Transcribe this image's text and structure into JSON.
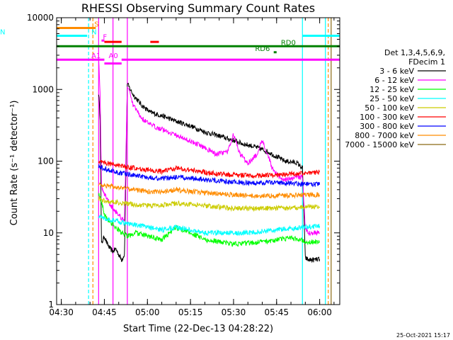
{
  "chart_data": {
    "type": "line",
    "title": "RHESSI Observing Summary Count Rates",
    "xlabel": "Start Time (22-Dec-13 04:28:22)",
    "ylabel": "Count Rate (s⁻¹ detector⁻¹)",
    "x_scale": "time",
    "y_scale": "log",
    "xlim": [
      "04:28:22",
      "06:07:00"
    ],
    "ylim": [
      1,
      10000
    ],
    "x_ticks": [
      "04:30",
      "04:45",
      "05:00",
      "05:15",
      "05:30",
      "05:45",
      "06:00"
    ],
    "y_ticks": [
      "1",
      "10",
      "100",
      "1000",
      "10000"
    ],
    "legend_header": [
      "Det 1,3,4,5,6,9,",
      "FDecim 1"
    ],
    "series": [
      {
        "name": "3 - 6 keV",
        "color": "#000000",
        "x": [
          "04:43",
          "04:43:30",
          "04:44",
          "04:45",
          "04:46",
          "04:47",
          "04:48",
          "04:49",
          "04:50",
          "04:51",
          "04:52",
          "04:53",
          "04:55",
          "04:58",
          "05:01",
          "05:05",
          "05:10",
          "05:15",
          "05:20",
          "05:25",
          "05:28",
          "05:31",
          "05:33",
          "05:36",
          "05:39",
          "05:42",
          "05:45",
          "05:48",
          "05:52",
          "05:54",
          "05:55",
          "05:56",
          "05:58",
          "06:00"
        ],
        "values": [
          900,
          400,
          7,
          9,
          7,
          6,
          5.5,
          6,
          5,
          4.2,
          5,
          1200,
          850,
          600,
          480,
          430,
          360,
          310,
          255,
          225,
          205,
          190,
          175,
          165,
          150,
          135,
          115,
          100,
          95,
          80,
          4.5,
          4.2,
          4.2,
          4.3
        ]
      },
      {
        "name": "6 - 12 keV",
        "color": "#ff00ff",
        "x": [
          "04:43",
          "04:43:30",
          "04:44",
          "04:45",
          "04:46",
          "04:47",
          "04:48",
          "04:49",
          "04:50",
          "04:51",
          "04:52",
          "04:53",
          "04:55",
          "04:58",
          "05:01",
          "05:05",
          "05:10",
          "05:15",
          "05:20",
          "05:24",
          "05:28",
          "05:30",
          "05:32",
          "05:35",
          "05:38",
          "05:40",
          "05:42",
          "05:44",
          "05:46",
          "05:48",
          "05:52",
          "05:54",
          "05:55",
          "05:56",
          "05:58",
          "06:00"
        ],
        "values": [
          3000,
          900,
          45,
          35,
          30,
          25,
          22,
          20,
          18,
          16,
          15,
          1150,
          600,
          400,
          320,
          280,
          230,
          190,
          155,
          125,
          135,
          240,
          130,
          95,
          120,
          200,
          120,
          70,
          60,
          55,
          60,
          60,
          12,
          10,
          10,
          10
        ]
      },
      {
        "name": "12 - 25 keV",
        "color": "#00ff00",
        "x": [
          "04:43",
          "04:44",
          "04:45",
          "04:47",
          "04:49",
          "04:51",
          "04:53",
          "04:56",
          "05:00",
          "05:05",
          "05:10",
          "05:15",
          "05:20",
          "05:25",
          "05:30",
          "05:35",
          "05:40",
          "05:45",
          "05:50",
          "05:54",
          "05:56",
          "06:00"
        ],
        "values": [
          35,
          28,
          18,
          14,
          12,
          10,
          9,
          10,
          9,
          8,
          12,
          10,
          8,
          7.5,
          7,
          7.2,
          7.5,
          8,
          8.5,
          8,
          7.5,
          7.5
        ]
      },
      {
        "name": "25 - 50 keV",
        "color": "#00ffff",
        "x": [
          "04:43",
          "04:45",
          "04:48",
          "04:51",
          "04:55",
          "05:00",
          "05:05",
          "05:10",
          "05:15",
          "05:20",
          "05:25",
          "05:30",
          "05:35",
          "05:40",
          "05:45",
          "05:50",
          "05:55",
          "06:00"
        ],
        "values": [
          17,
          16,
          15,
          14,
          13,
          12,
          11,
          12,
          11,
          10,
          10,
          10,
          10,
          10.5,
          11,
          11.5,
          12,
          12.5
        ]
      },
      {
        "name": "50 - 100 keV",
        "color": "#cccc00",
        "x": [
          "04:43",
          "04:45",
          "04:48",
          "04:51",
          "04:55",
          "05:00",
          "05:05",
          "05:10",
          "05:15",
          "05:20",
          "05:25",
          "05:30",
          "05:35",
          "05:40",
          "05:45",
          "05:50",
          "05:55",
          "06:00"
        ],
        "values": [
          30,
          28,
          27,
          26,
          25,
          24,
          24,
          26,
          25,
          24,
          23,
          22,
          22,
          22,
          22,
          22,
          23,
          23
        ]
      },
      {
        "name": "100 - 300 keV",
        "color": "#ff0000",
        "x": [
          "04:43",
          "04:45",
          "04:48",
          "04:51",
          "04:55",
          "05:00",
          "05:05",
          "05:10",
          "05:15",
          "05:20",
          "05:25",
          "05:30",
          "05:35",
          "05:40",
          "05:45",
          "05:50",
          "05:55",
          "06:00"
        ],
        "values": [
          100,
          95,
          90,
          85,
          80,
          75,
          72,
          80,
          75,
          70,
          66,
          64,
          63,
          63,
          64,
          66,
          68,
          70
        ]
      },
      {
        "name": "300 - 800 keV",
        "color": "#0000ff",
        "x": [
          "04:43",
          "04:45",
          "04:48",
          "04:51",
          "04:55",
          "05:00",
          "05:05",
          "05:10",
          "05:15",
          "05:20",
          "05:25",
          "05:30",
          "05:35",
          "05:40",
          "05:45",
          "05:50",
          "05:55",
          "06:00"
        ],
        "values": [
          85,
          78,
          72,
          68,
          64,
          60,
          57,
          60,
          58,
          55,
          53,
          51,
          50,
          50,
          50,
          49,
          48,
          47
        ]
      },
      {
        "name": "800 - 7000 keV",
        "color": "#ff8c00",
        "x": [
          "04:43",
          "04:45",
          "04:48",
          "04:51",
          "04:55",
          "05:00",
          "05:05",
          "05:10",
          "05:15",
          "05:20",
          "05:25",
          "05:30",
          "05:35",
          "05:40",
          "05:45",
          "05:50",
          "05:55",
          "06:00"
        ],
        "values": [
          48,
          46,
          44,
          42,
          40,
          38,
          37,
          40,
          38,
          36,
          35,
          34,
          33,
          33,
          33,
          33,
          34,
          34
        ]
      },
      {
        "name": "7000 - 15000 keV",
        "color": "#8b6914",
        "x": [],
        "values": []
      }
    ],
    "flag_bars": [
      {
        "label": "S",
        "color": "#ff8c00",
        "y": 7200,
        "x0": "04:28:22",
        "x1": "04:42",
        "label_x": "04:41"
      },
      {
        "label": "N",
        "color": "#00ffff",
        "y": 5600,
        "x0": "04:28:22",
        "x1": "04:39",
        "label_x": "04:40"
      },
      {
        "label": "N",
        "color": "#00ffff",
        "y": 5600,
        "x0": "05:54",
        "x1": "06:07",
        "label_x": ""
      },
      {
        "label": "F",
        "color": "#ff00ff",
        "y": 4800,
        "x0": "04:44",
        "x1": "04:45",
        "label_x": "04:44"
      },
      {
        "label": "",
        "color": "#ff0000",
        "y": 4600,
        "x0": "04:45",
        "x1": "04:51",
        "label_x": ""
      },
      {
        "label": "",
        "color": "#ff0000",
        "y": 4600,
        "x0": "05:01",
        "x1": "05:04",
        "label_x": ""
      },
      {
        "label": "RD0",
        "color": "#008000",
        "y": 4000,
        "x0": "04:28:22",
        "x1": "06:07",
        "label_x": "05:46"
      },
      {
        "label": "RD6",
        "color": "#008000",
        "y": 3300,
        "x0": "05:44",
        "x1": "05:45",
        "label_x": "05:37"
      },
      {
        "label": "A0",
        "color": "#ff00ff",
        "y": 2600,
        "x0": "04:51",
        "x1": "06:07",
        "label_x": "04:46"
      },
      {
        "label": "A1",
        "color": "#ff00ff",
        "y": 2600,
        "x0": "04:28:22",
        "x1": "04:45",
        "label_x": "04:40"
      },
      {
        "label": "",
        "color": "#ff00ff",
        "y": 2300,
        "x0": "04:45",
        "x1": "04:51",
        "label_x": ""
      }
    ],
    "vertical_lines": [
      {
        "x": "04:39:30",
        "color": "#00ffff",
        "style": "dashed"
      },
      {
        "x": "04:41",
        "color": "#ff8c00",
        "style": "dashed"
      },
      {
        "x": "04:43",
        "color": "#ff00ff",
        "style": "solid"
      },
      {
        "x": "04:48",
        "color": "#ff00ff",
        "style": "solid"
      },
      {
        "x": "04:53",
        "color": "#ff00ff",
        "style": "solid"
      },
      {
        "x": "05:54",
        "color": "#00ffff",
        "style": "solid"
      },
      {
        "x": "06:02",
        "color": "#00ffff",
        "style": "solid"
      },
      {
        "x": "06:03",
        "color": "#ff8c00",
        "style": "dashed"
      },
      {
        "x": "06:04",
        "color": "#8b6914",
        "style": "solid"
      }
    ],
    "timestamp": "25-Oct-2021 15:17"
  }
}
